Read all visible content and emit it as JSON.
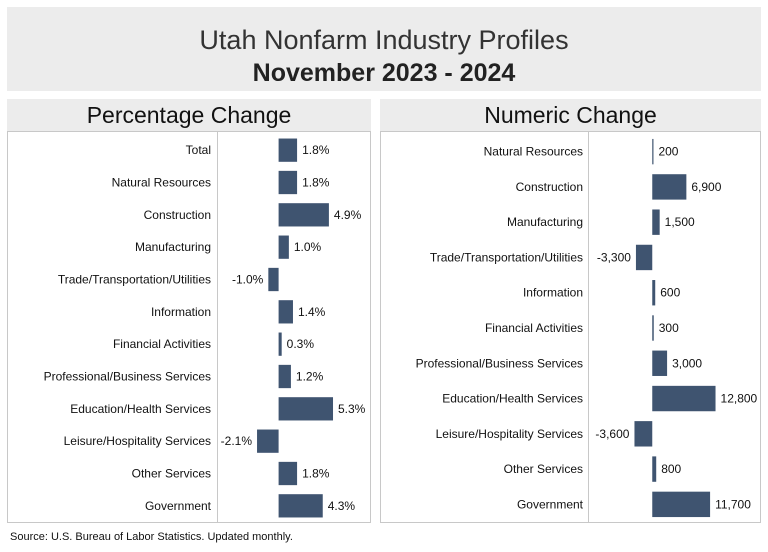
{
  "header": {
    "title": "Utah Nonfarm Industry Profiles",
    "subtitle": "November 2023 - 2024"
  },
  "colors": {
    "bar": "#3f5470",
    "panel_bg": "#ececec"
  },
  "source": "Source: U.S. Bureau of Labor Statistics. Updated monthly.",
  "chart_data": [
    {
      "type": "bar",
      "orientation": "horizontal",
      "title": "Percentage Change",
      "unit": "%",
      "categories": [
        "Total",
        "Natural Resources",
        "Construction",
        "Manufacturing",
        "Trade/Transportation/Utilities",
        "Information",
        "Financial Activities",
        "Professional/Business Services",
        "Education/Health Services",
        "Leisure/Hospitality Services",
        "Other Services",
        "Government"
      ],
      "values": [
        1.8,
        1.8,
        4.9,
        1.0,
        -1.0,
        1.4,
        0.3,
        1.2,
        5.3,
        -2.1,
        1.8,
        4.3
      ],
      "labels": [
        "1.8%",
        "1.8%",
        "4.9%",
        "1.0%",
        "-1.0%",
        "1.4%",
        "0.3%",
        "1.2%",
        "5.3%",
        "-2.1%",
        "1.8%",
        "4.3%"
      ],
      "xlim": [
        -6.0,
        9.0
      ]
    },
    {
      "type": "bar",
      "orientation": "horizontal",
      "title": "Numeric Change",
      "categories": [
        "Natural Resources",
        "Construction",
        "Manufacturing",
        "Trade/Transportation/Utilities",
        "Information",
        "Financial Activities",
        "Professional/Business Services",
        "Education/Health Services",
        "Leisure/Hospitality Services",
        "Other Services",
        "Government"
      ],
      "values": [
        200,
        6900,
        1500,
        -3300,
        600,
        300,
        3000,
        12800,
        -3600,
        800,
        11700
      ],
      "labels": [
        "200",
        "6,900",
        "1,500",
        "-3,300",
        "600",
        "300",
        "3,000",
        "12,800",
        "-3,600",
        "800",
        "11,700"
      ],
      "xlim": [
        -13000,
        22000
      ]
    }
  ]
}
